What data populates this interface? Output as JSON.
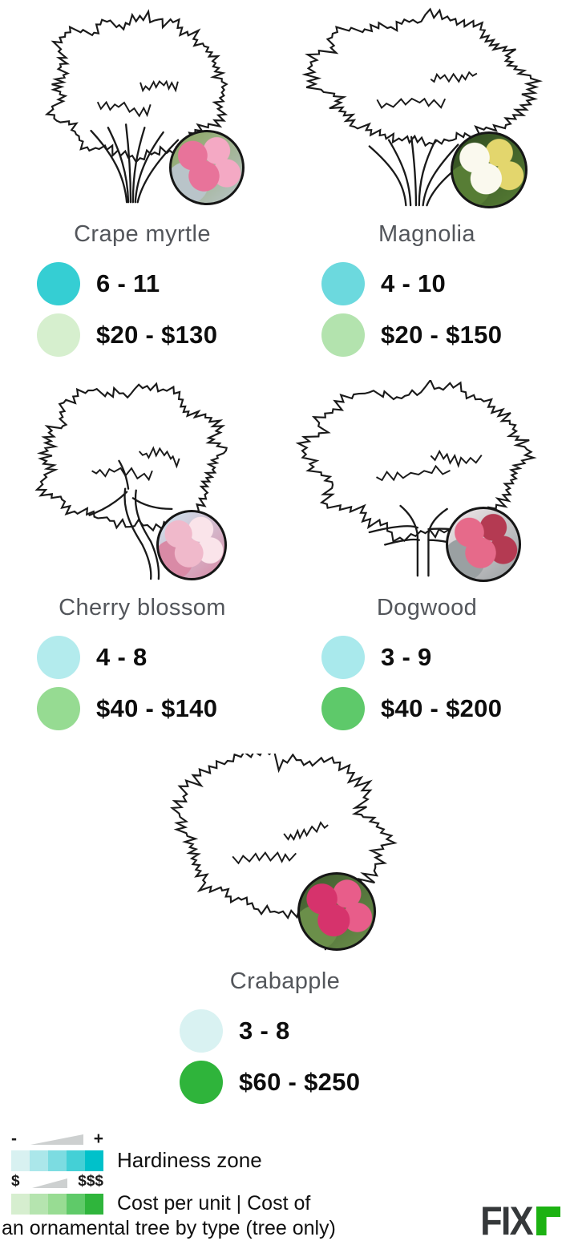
{
  "chart_data": {
    "type": "table",
    "title": "Cost per unit | Cost of an ornamental tree by type (tree only)",
    "categories": [
      "Crape myrtle",
      "Magnolia",
      "Cherry blossom",
      "Dogwood",
      "Crabapple"
    ],
    "series": [
      {
        "name": "Hardiness zone",
        "values": [
          "6 - 11",
          "4 - 10",
          "4 - 8",
          "3 - 9",
          "3 - 8"
        ]
      },
      {
        "name": "Cost per unit (tree only)",
        "values": [
          "$20 - $130",
          "$20 - $150",
          "$40 - $140",
          "$40 - $200",
          "$60 - $250"
        ]
      }
    ],
    "legend_position": "bottom-left"
  },
  "trees": [
    {
      "name": "Crape myrtle",
      "zone": "6 - 11",
      "cost": "$20 - $130",
      "zone_color": "#35ced3",
      "cost_color": "#d6efce",
      "photo_palette": [
        "#e8739a",
        "#f4a9c4",
        "#8aa55e",
        "#b9c4c9"
      ]
    },
    {
      "name": "Magnolia",
      "zone": "4 - 10",
      "cost": "$20 - $150",
      "zone_color": "#6cd9de",
      "cost_color": "#b3e3ae",
      "photo_palette": [
        "#faf9ee",
        "#e3d66d",
        "#2e4a1f",
        "#577d35"
      ]
    },
    {
      "name": "Cherry blossom",
      "zone": "4 - 8",
      "cost": "$40 - $140",
      "zone_color": "#b3ebed",
      "cost_color": "#96db92",
      "photo_palette": [
        "#f0b9cb",
        "#fae4ea",
        "#cde8f2",
        "#d98aa6"
      ]
    },
    {
      "name": "Dogwood",
      "zone": "3 - 9",
      "cost": "$40 - $200",
      "zone_color": "#a9e9ec",
      "cost_color": "#5ec96a",
      "photo_palette": [
        "#e66a8a",
        "#b43a52",
        "#f2e9ec",
        "#9aa0a2"
      ]
    },
    {
      "name": "Crabapple",
      "zone": "3 - 8",
      "cost": "$60 - $250",
      "zone_color": "#d9f2f2",
      "cost_color": "#2fb43b",
      "photo_palette": [
        "#d6336c",
        "#e85d8a",
        "#3e5a2e",
        "#6b8f4a"
      ]
    }
  ],
  "legend": {
    "hardiness": {
      "label": "Hardiness zone",
      "min_symbol": "-",
      "max_symbol": "+",
      "colors": [
        "#d8f1f1",
        "#abe7ea",
        "#7cdce1",
        "#44d0d6",
        "#00c1ca"
      ]
    },
    "cost": {
      "label": "Cost per unit | Cost of an ornamental tree by type (tree only)",
      "min_symbol": "$",
      "max_symbol": "$$$",
      "colors": [
        "#d6eecf",
        "#b5e4af",
        "#98dc93",
        "#5fca69",
        "#2fb53c"
      ]
    }
  },
  "brand": {
    "text": "FIX",
    "r_glyph": "r",
    "accent": "#1cb212",
    "text_color": "#35383a"
  }
}
